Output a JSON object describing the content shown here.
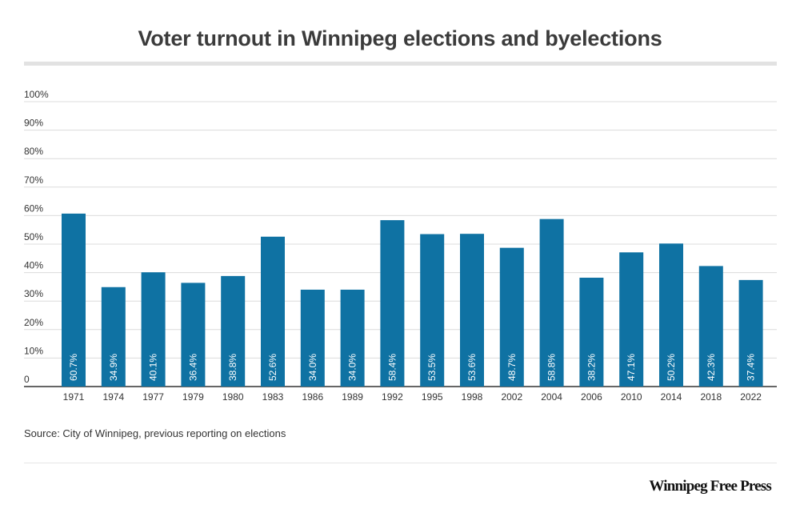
{
  "chart_data": {
    "type": "bar",
    "title": "Voter turnout in Winnipeg elections and byelections",
    "categories": [
      "1971",
      "1974",
      "1977",
      "1979",
      "1980",
      "1983",
      "1986",
      "1989",
      "1992",
      "1995",
      "1998",
      "2002",
      "2004",
      "2006",
      "2010",
      "2014",
      "2018",
      "2022"
    ],
    "values": [
      60.7,
      34.9,
      40.1,
      36.4,
      38.8,
      52.6,
      34.0,
      34.0,
      58.4,
      53.5,
      53.6,
      48.7,
      58.8,
      38.2,
      47.1,
      50.2,
      42.3,
      37.4
    ],
    "data_labels": [
      "60.7%",
      "34.9%",
      "40.1%",
      "36.4%",
      "38.8%",
      "52.6%",
      "34.0%",
      "34.0%",
      "58.4%",
      "53.5%",
      "53.6%",
      "48.7%",
      "58.8%",
      "38.2%",
      "47.1%",
      "50.2%",
      "42.3%",
      "37.4%"
    ],
    "y_ticks": [
      0,
      10,
      20,
      30,
      40,
      50,
      60,
      70,
      80,
      90,
      100
    ],
    "y_tick_labels": [
      "0",
      "10%",
      "20%",
      "30%",
      "40%",
      "50%",
      "60%",
      "70%",
      "80%",
      "90%",
      "100%"
    ],
    "ylim": [
      0,
      100
    ],
    "grid": true,
    "bar_color": "#0f72a3",
    "xlabel": "",
    "ylabel": ""
  },
  "source": "Source: City of Winnipeg, previous reporting on elections",
  "brand": "Winnipeg Free Press"
}
